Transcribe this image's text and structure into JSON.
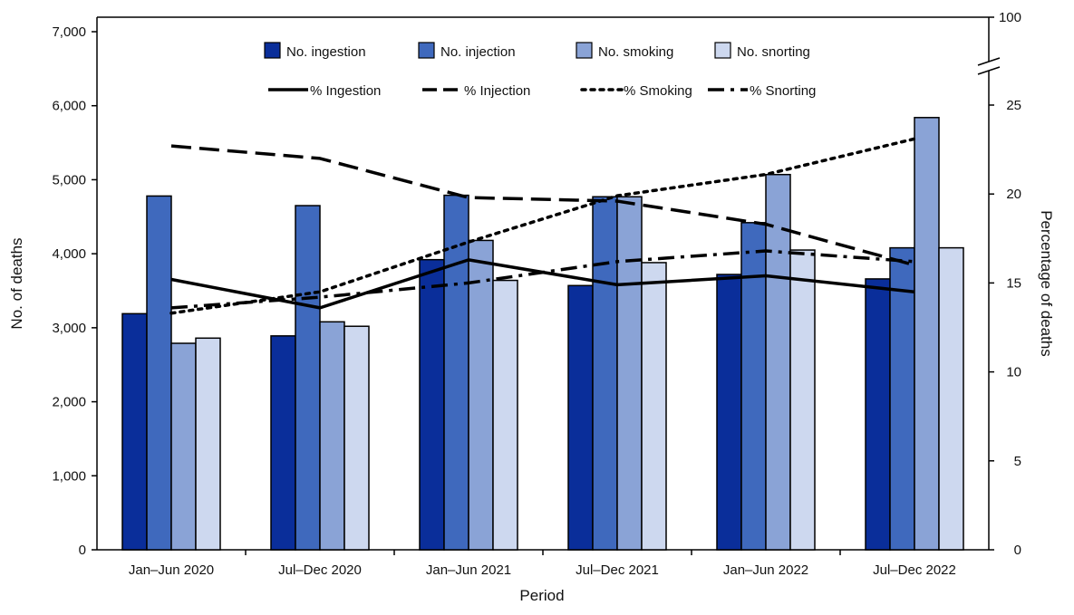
{
  "chart_data": {
    "type": "bar",
    "xlabel": "Period",
    "ylabel": "No. of deaths",
    "y2label": "Percentage of deaths",
    "categories": [
      "Jan–Jun 2020",
      "Jul–Dec 2020",
      "Jan–Jun 2021",
      "Jul–Dec 2021",
      "Jan–Jun 2022",
      "Jul–Dec 2022"
    ],
    "ylim": [
      0,
      7000
    ],
    "yticks": [
      0,
      1000,
      2000,
      3000,
      4000,
      5000,
      6000,
      7000
    ],
    "ytick_labels": [
      "0",
      "1,000",
      "2,000",
      "3,000",
      "4,000",
      "5,000",
      "6,000",
      "7,000"
    ],
    "y2lim": [
      0,
      25
    ],
    "y2ticks": [
      0,
      5,
      10,
      15,
      20,
      25
    ],
    "y2tick_labels": [
      "0",
      "5",
      "10",
      "15",
      "20",
      "25"
    ],
    "y2_break_label": "100",
    "grid": false,
    "legend": "top, inside plot area, two rows",
    "bar_series": [
      {
        "name": "No. ingestion",
        "color": "#0a2e9a",
        "values": [
          3190,
          2890,
          3920,
          3570,
          3720,
          3660
        ]
      },
      {
        "name": "No. injection",
        "color": "#3f69bd",
        "values": [
          4780,
          4650,
          4790,
          4770,
          4420,
          4080
        ]
      },
      {
        "name": "No. smoking",
        "color": "#8aa3d6",
        "values": [
          2790,
          3080,
          4180,
          4770,
          5070,
          5840
        ]
      },
      {
        "name": "No. snorting",
        "color": "#cdd8ef",
        "values": [
          2860,
          3020,
          3640,
          3880,
          4050,
          4080
        ]
      }
    ],
    "line_series": [
      {
        "name": "% Ingestion",
        "style": "solid",
        "values": [
          15.2,
          13.6,
          16.3,
          14.9,
          15.4,
          14.5
        ]
      },
      {
        "name": "% Injection",
        "style": "dashed",
        "values": [
          22.7,
          22.0,
          19.8,
          19.6,
          18.3,
          16.0
        ]
      },
      {
        "name": "% Smoking",
        "style": "dotted",
        "values": [
          13.3,
          14.5,
          17.3,
          19.9,
          21.1,
          23.1
        ]
      },
      {
        "name": "% Snorting",
        "style": "dashdot",
        "values": [
          13.6,
          14.2,
          15.0,
          16.2,
          16.8,
          16.2
        ]
      }
    ]
  }
}
